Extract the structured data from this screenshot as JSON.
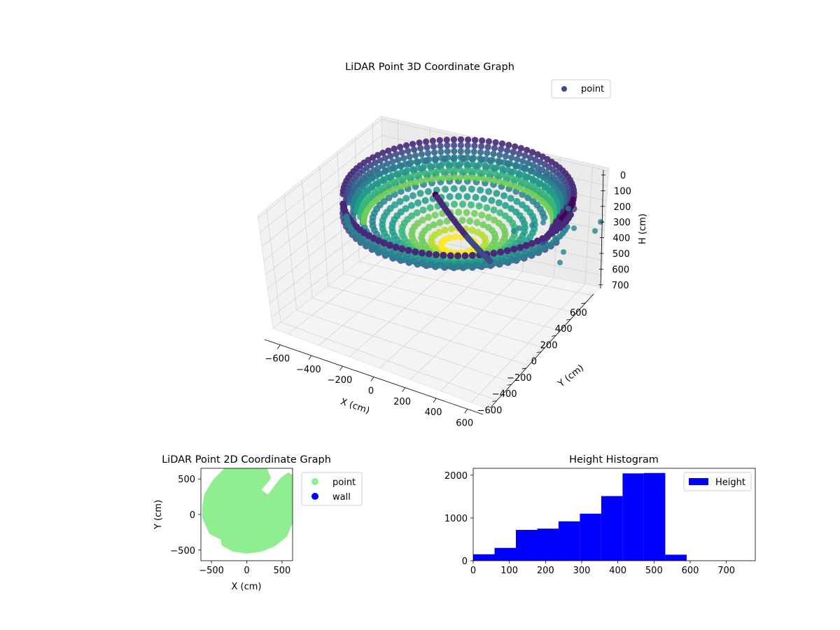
{
  "chart_data": [
    {
      "type": "scatter",
      "dimensions": 3,
      "title": "LiDAR Point 3D Coordinate Graph",
      "xlabel": "X (cm)",
      "ylabel": "Y (cm)",
      "zlabel": "H (cm)",
      "x_ticks": [
        "−600",
        "−400",
        "−200",
        "0",
        "200",
        "400",
        "600"
      ],
      "y_ticks": [
        "−600",
        "−400",
        "−200",
        "0",
        "200",
        "400",
        "600"
      ],
      "z_ticks": [
        "0",
        "100",
        "200",
        "300",
        "400",
        "500",
        "600",
        "700"
      ],
      "xlim": [
        -600,
        600
      ],
      "ylim": [
        -600,
        600
      ],
      "zlim": [
        750,
        0
      ],
      "z_inverted": true,
      "grid": true,
      "colormap": "viridis",
      "legend": {
        "position": "top-right",
        "entries": [
          {
            "label": "point",
            "color": "#3b4a8c"
          }
        ]
      },
      "series": [
        {
          "name": "point"
        }
      ]
    },
    {
      "type": "scatter",
      "dimensions": 2,
      "title": "LiDAR Point 2D Coordinate Graph",
      "xlabel": "X (cm)",
      "ylabel": "Y (cm)",
      "x_ticks": [
        "−500",
        "0",
        "500"
      ],
      "y_ticks": [
        "500",
        "0",
        "−500"
      ],
      "xlim": [
        -650,
        650
      ],
      "ylim": [
        -650,
        650
      ],
      "legend": {
        "position": "outside-right",
        "entries": [
          {
            "label": "point",
            "color": "#90ee90"
          },
          {
            "label": "wall",
            "color": "#0000ff"
          }
        ]
      },
      "series": [
        {
          "name": "point",
          "color": "#90ee90"
        },
        {
          "name": "wall",
          "color": "#0000ff"
        }
      ]
    },
    {
      "type": "bar",
      "subtype": "histogram",
      "title": "Height Histogram",
      "xlim": [
        0,
        780
      ],
      "ylim": [
        0,
        2160
      ],
      "x_ticks": [
        "0",
        "100",
        "200",
        "300",
        "400",
        "500",
        "600",
        "700"
      ],
      "y_ticks": [
        "0",
        "1000",
        "2000"
      ],
      "bin_edges": [
        0,
        59,
        118,
        177,
        236,
        295,
        354,
        413,
        472,
        531,
        590
      ],
      "values": [
        150,
        300,
        720,
        750,
        920,
        1100,
        1510,
        2040,
        2050,
        140
      ],
      "color": "#0000ff",
      "legend": {
        "position": "top-right",
        "entries": [
          {
            "label": "Height",
            "color": "#0000ff"
          }
        ]
      },
      "series": [
        {
          "name": "Height"
        }
      ]
    }
  ]
}
